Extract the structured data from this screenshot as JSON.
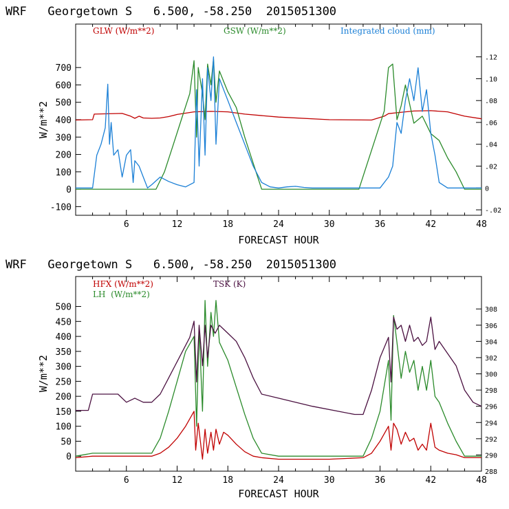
{
  "chart_data": [
    {
      "type": "line",
      "title": "WRF   Georgetown S   6.500, -58.250  2015051300",
      "xlabel": "FORECAST HOUR",
      "ylabel": "W/m**2",
      "xlim": [
        0,
        48
      ],
      "ylim": [
        -150,
        950
      ],
      "y2lim": [
        -0.025,
        0.15
      ],
      "xticks": [
        6,
        12,
        18,
        24,
        30,
        36,
        42,
        48
      ],
      "xtick_labels": [
        "6",
        "12",
        "18",
        "24",
        "30",
        "36",
        "42",
        "48"
      ],
      "yticks": [
        -100,
        0,
        100,
        200,
        300,
        400,
        500,
        600,
        700
      ],
      "ytick_labels": [
        "-100",
        "0",
        "100",
        "200",
        "300",
        "400",
        "500",
        "600",
        "700"
      ],
      "y2ticks": [
        -0.02,
        0,
        0.02,
        0.04,
        0.06,
        0.08,
        0.1,
        0.12
      ],
      "y2tick_labels": [
        "-.02",
        "0",
        ".02",
        ".04",
        ".06",
        ".08",
        ".10",
        ".12"
      ],
      "legend": [
        {
          "label": "GLW (W/m**2)",
          "color": "#c00000"
        },
        {
          "label": "GSW (W/m**2)",
          "color": "#2a8a2a"
        },
        {
          "label": "Integrated cloud (mm)",
          "color": "#1a7fd6"
        }
      ],
      "series": [
        {
          "name": "GLW",
          "color": "#c00000",
          "axis": "left",
          "x": [
            0,
            2,
            2.2,
            5.5,
            6.5,
            7,
            7.5,
            8,
            9,
            10,
            11,
            12,
            14,
            16,
            18,
            20,
            24,
            30,
            35,
            36.5,
            37,
            38,
            40,
            42,
            44,
            46,
            48
          ],
          "y": [
            398,
            400,
            432,
            436,
            420,
            408,
            420,
            410,
            408,
            410,
            418,
            430,
            445,
            448,
            445,
            432,
            415,
            400,
            398,
            420,
            435,
            440,
            450,
            452,
            445,
            420,
            405
          ]
        },
        {
          "name": "GSW",
          "color": "#2a8a2a",
          "axis": "left",
          "x": [
            0,
            9.5,
            10.5,
            11.5,
            12.5,
            13.5,
            14,
            14.3,
            14.5,
            15,
            15.3,
            15.6,
            16,
            16.3,
            16.6,
            17,
            17.5,
            18,
            19,
            20,
            21,
            22,
            24,
            33.5,
            34.5,
            35.5,
            36.5,
            37,
            37.5,
            38,
            38.5,
            39,
            40,
            41,
            42,
            43,
            44,
            45,
            46,
            48
          ],
          "y": [
            0,
            0,
            100,
            250,
            400,
            550,
            740,
            300,
            700,
            550,
            400,
            720,
            600,
            750,
            500,
            680,
            620,
            560,
            470,
            300,
            150,
            0,
            0,
            0,
            150,
            300,
            450,
            700,
            720,
            400,
            480,
            600,
            380,
            420,
            320,
            280,
            180,
            100,
            0,
            0
          ]
        },
        {
          "name": "Integrated cloud",
          "color": "#1a7fd6",
          "axis": "right",
          "x": [
            0,
            2,
            2.5,
            3,
            3.5,
            3.8,
            4,
            4.2,
            4.5,
            5,
            5.5,
            6,
            6.5,
            6.8,
            7,
            7.5,
            8,
            8.5,
            9,
            10,
            11,
            12,
            13,
            14,
            14.3,
            14.6,
            15,
            15.3,
            15.6,
            16,
            16.3,
            16.6,
            17,
            17.5,
            18,
            19,
            20,
            21,
            22,
            23,
            24,
            25,
            26,
            27,
            28,
            36,
            37,
            37.5,
            38,
            38.5,
            39,
            39.5,
            40,
            40.5,
            41,
            41.5,
            42,
            42.5,
            43,
            44,
            48
          ],
          "y": [
            0,
            0,
            0.03,
            0.04,
            0.055,
            0.095,
            0.04,
            0.06,
            0.03,
            0.035,
            0.01,
            0.03,
            0.035,
            0.005,
            0.025,
            0.02,
            0.01,
            0,
            0.003,
            0.01,
            0.006,
            0.003,
            0.001,
            0.005,
            0.09,
            0.02,
            0.1,
            0.03,
            0.11,
            0.08,
            0.12,
            0.04,
            0.1,
            0.09,
            0.08,
            0.06,
            0.04,
            0.02,
            0.005,
            0.001,
            0,
            0.001,
            0.0015,
            0.0005,
            0,
            0,
            0.01,
            0.02,
            0.06,
            0.05,
            0.08,
            0.1,
            0.08,
            0.11,
            0.07,
            0.09,
            0.05,
            0.03,
            0.005,
            0,
            0
          ]
        }
      ]
    },
    {
      "type": "line",
      "title": "WRF   Georgetown S   6.500, -58.250  2015051300",
      "xlabel": "FORECAST HOUR",
      "ylabel": "W/m**2",
      "xlim": [
        0,
        48
      ],
      "ylim": [
        -50,
        600
      ],
      "y2lim": [
        288,
        312
      ],
      "xticks": [
        6,
        12,
        18,
        24,
        30,
        36,
        42,
        48
      ],
      "xtick_labels": [
        "6",
        "12",
        "18",
        "24",
        "30",
        "36",
        "42",
        "48"
      ],
      "yticks": [
        0,
        50,
        100,
        150,
        200,
        250,
        300,
        350,
        400,
        450,
        500
      ],
      "ytick_labels": [
        "0",
        "50",
        "100",
        "150",
        "200",
        "250",
        "300",
        "350",
        "400",
        "450",
        "500"
      ],
      "y2ticks": [
        288,
        290,
        292,
        294,
        296,
        298,
        300,
        302,
        304,
        306,
        308
      ],
      "y2tick_labels": [
        "288",
        "290",
        "292",
        "294",
        "296",
        "298",
        "300",
        "302",
        "304",
        "306",
        "308"
      ],
      "legend": [
        {
          "label": "HFX (W/m**2)",
          "color": "#c00000"
        },
        {
          "label": "LH  (W/m**2)",
          "color": "#2a8a2a"
        },
        {
          "label": "TSK (K)",
          "color": "#4a1040"
        }
      ],
      "series": [
        {
          "name": "HFX",
          "color": "#c00000",
          "axis": "left",
          "x": [
            0,
            2,
            9,
            10,
            11,
            12,
            13,
            14,
            14.2,
            14.5,
            15,
            15.3,
            15.6,
            16,
            16.3,
            16.6,
            17,
            17.5,
            18,
            19,
            20,
            21,
            22,
            24,
            30,
            34,
            35,
            36,
            37,
            37.3,
            37.6,
            38,
            38.5,
            39,
            39.5,
            40,
            40.5,
            41,
            41.5,
            42,
            42.5,
            43,
            44,
            45,
            46,
            48
          ],
          "y": [
            -5,
            0,
            0,
            10,
            30,
            60,
            100,
            150,
            20,
            110,
            -10,
            90,
            10,
            80,
            20,
            90,
            40,
            80,
            70,
            40,
            15,
            0,
            -5,
            -10,
            -10,
            -5,
            10,
            50,
            100,
            20,
            110,
            90,
            40,
            80,
            50,
            60,
            20,
            40,
            20,
            110,
            30,
            20,
            10,
            5,
            -5,
            -5
          ]
        },
        {
          "name": "LH",
          "color": "#2a8a2a",
          "axis": "left",
          "x": [
            0,
            2,
            9,
            10,
            11,
            12,
            13,
            14,
            14.3,
            14.6,
            15,
            15.3,
            15.6,
            16,
            16.3,
            16.6,
            17,
            17.5,
            18,
            19,
            20,
            21,
            22,
            24,
            30,
            34,
            35,
            36,
            37,
            37.3,
            37.6,
            38,
            38.5,
            39,
            39.5,
            40,
            40.5,
            41,
            41.5,
            42,
            42.5,
            43,
            44,
            45,
            46,
            48
          ],
          "y": [
            0,
            10,
            10,
            60,
            150,
            250,
            350,
            400,
            100,
            430,
            150,
            520,
            300,
            480,
            400,
            520,
            380,
            350,
            320,
            230,
            140,
            60,
            10,
            0,
            0,
            0,
            60,
            150,
            320,
            120,
            470,
            380,
            260,
            350,
            280,
            320,
            220,
            300,
            220,
            320,
            200,
            180,
            110,
            50,
            0,
            0
          ]
        },
        {
          "name": "TSK",
          "color": "#4a1040",
          "axis": "right",
          "x": [
            0,
            1.5,
            2,
            5,
            6,
            7,
            8,
            9,
            10,
            11,
            12,
            13,
            13.5,
            14,
            14.3,
            14.6,
            15,
            15.3,
            15.6,
            16,
            16.5,
            17,
            17.5,
            18,
            19,
            20,
            21,
            22,
            24,
            28,
            33,
            34,
            35,
            36,
            37,
            37.3,
            37.6,
            38,
            38.5,
            39,
            39.5,
            40,
            40.5,
            41,
            41.5,
            42,
            42.5,
            43,
            44,
            45,
            46,
            47,
            48
          ],
          "y": [
            295.5,
            295.5,
            297.5,
            297.5,
            296.5,
            297,
            296.5,
            296.5,
            297.5,
            299.5,
            301.5,
            303.5,
            304.5,
            306.5,
            299,
            306,
            301,
            306,
            302,
            306,
            305,
            306,
            305.5,
            305,
            304,
            302,
            299.5,
            297.5,
            297,
            296,
            295,
            295,
            298,
            302,
            304.5,
            299,
            307,
            305.5,
            306,
            304,
            306,
            304,
            304.5,
            303.5,
            304,
            307,
            303,
            304,
            302.5,
            301,
            298,
            296.5,
            296
          ]
        }
      ]
    }
  ]
}
